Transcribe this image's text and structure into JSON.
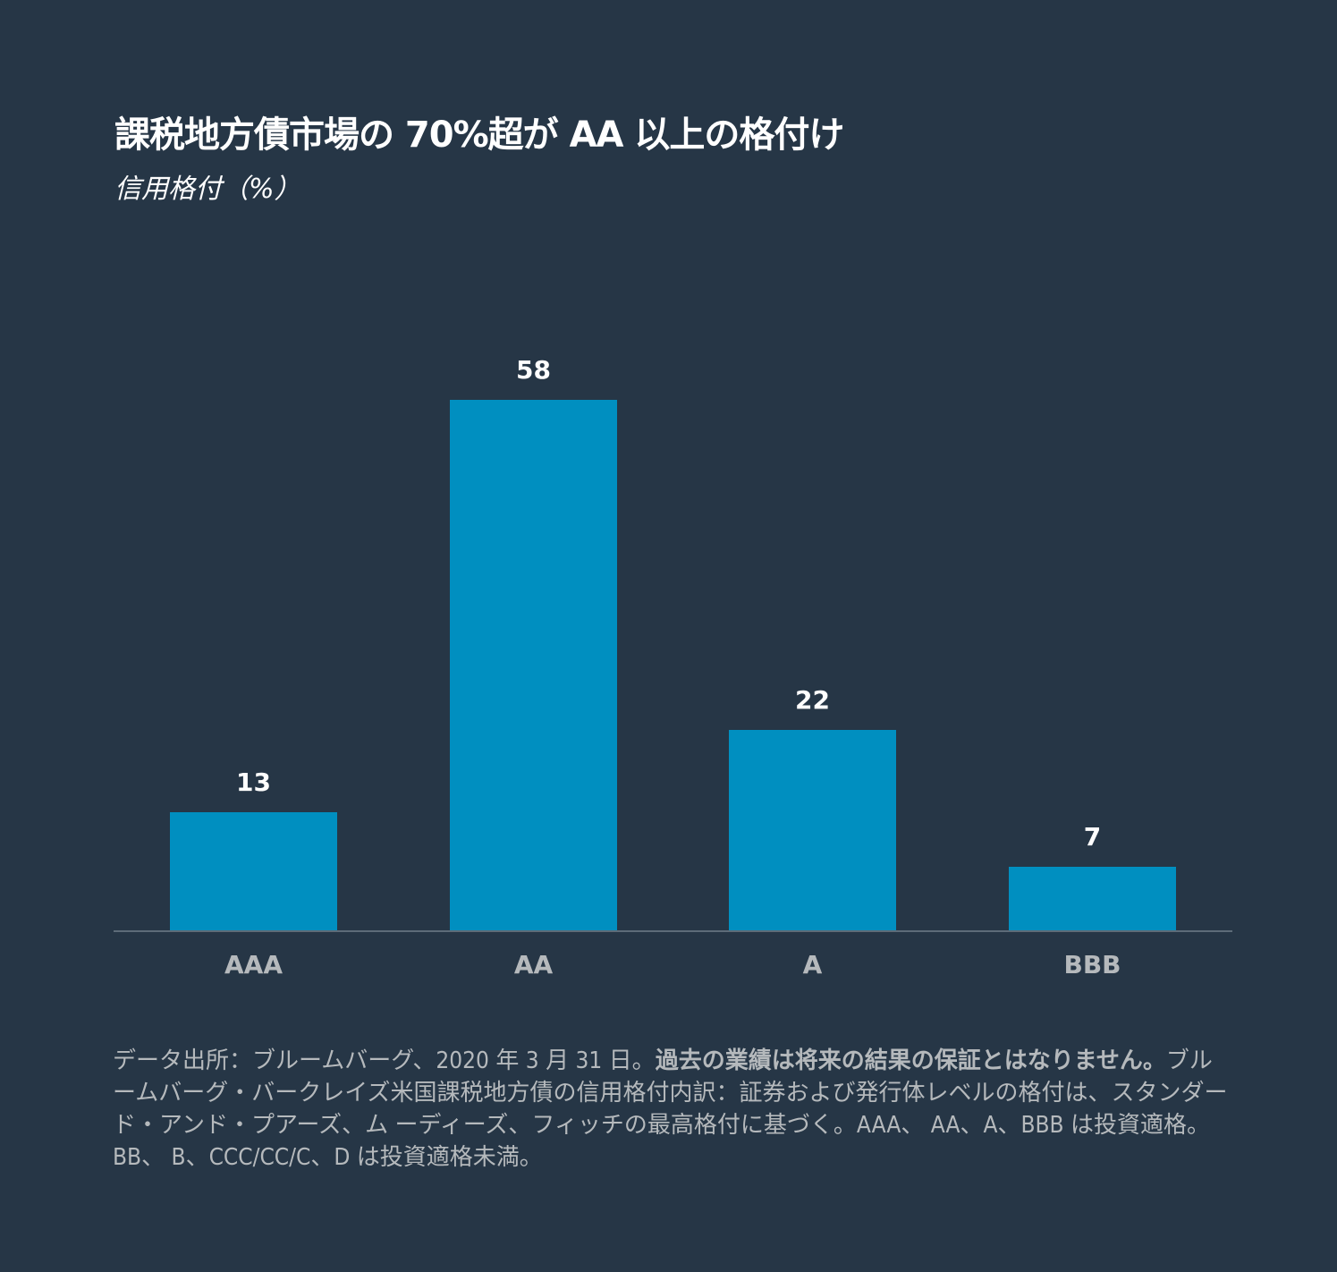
{
  "header": {
    "title": "課税地方債市場の 70%超が AA 以上の格付け",
    "subtitle": "信用格付（%）"
  },
  "colors": {
    "background": "#263646",
    "bar": "#008fc0",
    "value_label": "#ffffff",
    "category_label": "#b5b9bc",
    "baseline": "#5d6b78"
  },
  "chart_data": {
    "type": "bar",
    "title": "課税地方債市場の 70%超が AA 以上の格付け",
    "subtitle": "信用格付（%）",
    "xlabel": "",
    "ylabel": "信用格付（%）",
    "categories": [
      "AAA",
      "AA",
      "A",
      "BBB"
    ],
    "values": [
      13,
      58,
      22,
      7
    ],
    "data_labels": [
      "13",
      "58",
      "22",
      "7"
    ],
    "ylim": [
      0,
      70
    ],
    "grid": false,
    "legend": null
  },
  "bars": [
    {
      "category": "AAA",
      "value": 13,
      "label": "13"
    },
    {
      "category": "AA",
      "value": 58,
      "label": "58"
    },
    {
      "category": "A",
      "value": 22,
      "label": "22"
    },
    {
      "category": "BBB",
      "value": 7,
      "label": "7"
    }
  ],
  "footnote": {
    "part1": "データ出所：ブルームバーグ、2020 年 3 月 31 日。",
    "bold": "過去の業績は将来の結果の保証とはなりません。",
    "part2": "ブルームバーグ・バークレイズ米国課税地方債の信用格付内訳：証券および発行体レベルの格付は、スタンダード・アンド・プアーズ、ム ーディーズ、フィッチの最高格付に基づく。AAA、 AA、A、BBB は投資適格。BB、 B、CCC/CC/C、D は投資適格未満。"
  }
}
